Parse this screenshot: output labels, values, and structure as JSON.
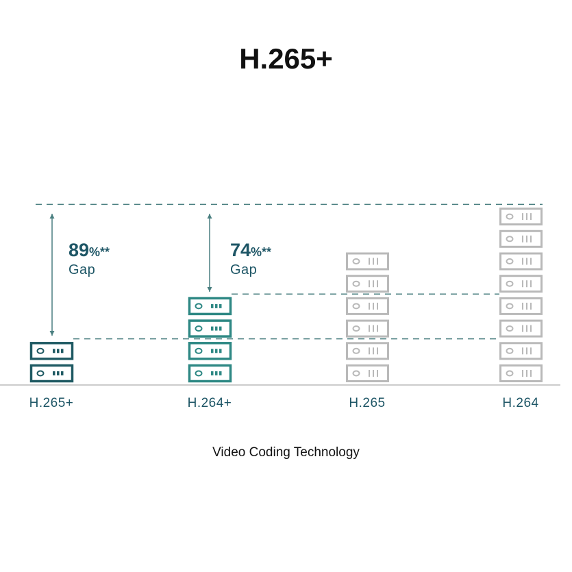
{
  "chart_data": {
    "type": "bar",
    "title": "H.265+",
    "xlabel": "Video Coding Technology",
    "ylabel": "",
    "categories": [
      "H.265+",
      "H.264+",
      "H.265",
      "H.264"
    ],
    "values": [
      2,
      4,
      6,
      8
    ],
    "ylim": [
      0,
      8
    ],
    "colors": [
      "#1f5a63",
      "#2e8884",
      "#b9b9b9",
      "#b9b9b9"
    ],
    "annotations": [
      {
        "category": "H.265+",
        "value": "89",
        "unit": "%**",
        "label": "Gap"
      },
      {
        "category": "H.264+",
        "value": "74",
        "unit": "%**",
        "label": "Gap"
      }
    ],
    "reference_lines": "dashed",
    "grid": false,
    "legend": "none"
  }
}
